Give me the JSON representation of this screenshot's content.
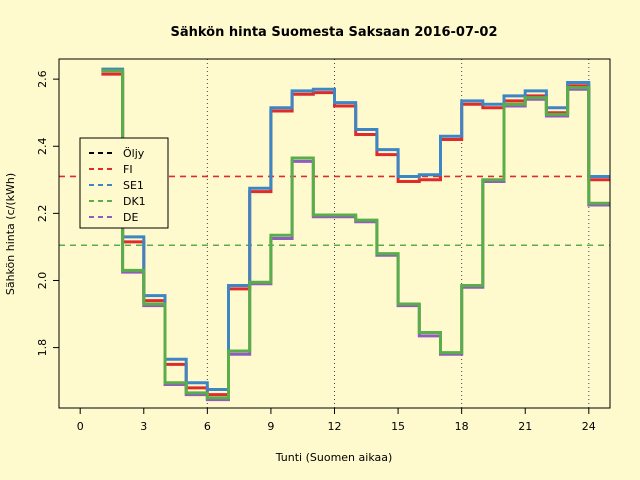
{
  "chart_data": {
    "type": "line",
    "title": "Sähkön hinta Suomesta Saksaan 2016-07-02",
    "xlabel": "Tunti (Suomen aikaa)",
    "ylabel": "Sähkön hinta (c/(kWh)",
    "xlim": [
      -1,
      25
    ],
    "ylim": [
      1.62,
      2.66
    ],
    "x_ticks": [
      0,
      3,
      6,
      9,
      12,
      15,
      18,
      21,
      24
    ],
    "y_ticks": [
      1.8,
      2.0,
      2.2,
      2.4,
      2.6
    ],
    "y_tick_labels": [
      "1.8",
      "2.0",
      "2.2",
      "2.4",
      "2.6"
    ],
    "vertical_gridlines": [
      6,
      12,
      18,
      24
    ],
    "legend_position": "left",
    "hours": [
      1,
      2,
      3,
      4,
      5,
      6,
      7,
      8,
      9,
      10,
      11,
      12,
      13,
      14,
      15,
      16,
      17,
      18,
      19,
      20,
      21,
      22,
      23,
      24
    ],
    "series": [
      {
        "name": "FI",
        "color": "#DF2B2B",
        "values": [
          2.615,
          2.115,
          1.94,
          1.75,
          1.68,
          1.66,
          1.975,
          2.265,
          2.505,
          2.555,
          2.56,
          2.52,
          2.435,
          2.375,
          2.295,
          2.3,
          2.42,
          2.525,
          2.515,
          2.535,
          2.55,
          2.5,
          2.58,
          2.3
        ]
      },
      {
        "name": "SE1",
        "color": "#3C86C6",
        "values": [
          2.63,
          2.13,
          1.955,
          1.765,
          1.695,
          1.675,
          1.985,
          2.275,
          2.515,
          2.565,
          2.57,
          2.53,
          2.45,
          2.39,
          2.31,
          2.315,
          2.43,
          2.535,
          2.525,
          2.55,
          2.565,
          2.515,
          2.59,
          2.31
        ]
      },
      {
        "name": "DE",
        "color": "#8F5CBF",
        "values": [
          2.625,
          2.025,
          1.925,
          1.69,
          1.66,
          1.645,
          1.78,
          1.99,
          2.125,
          2.355,
          2.19,
          2.19,
          2.175,
          2.075,
          1.925,
          1.835,
          1.78,
          1.98,
          2.295,
          2.52,
          2.54,
          2.49,
          2.57,
          2.225
        ]
      },
      {
        "name": "DK1",
        "color": "#5AAE4A",
        "values": [
          2.625,
          2.03,
          1.93,
          1.695,
          1.665,
          1.65,
          1.79,
          1.995,
          2.135,
          2.365,
          2.195,
          2.195,
          2.18,
          2.08,
          1.93,
          1.845,
          1.785,
          1.985,
          2.3,
          2.525,
          2.545,
          2.495,
          2.575,
          2.23
        ]
      }
    ],
    "horizontal_lines": [
      {
        "name": "FI",
        "color": "#DF2B2B",
        "y": 2.31
      },
      {
        "name": "DK1",
        "color": "#5AAE4A",
        "y": 2.105
      }
    ],
    "legend": [
      {
        "label": "Öljy",
        "color": "#000000"
      },
      {
        "label": "FI",
        "color": "#DF2B2B"
      },
      {
        "label": "SE1",
        "color": "#3C86C6"
      },
      {
        "label": "DK1",
        "color": "#5AAE4A"
      },
      {
        "label": "DE",
        "color": "#8F5CBF"
      }
    ]
  }
}
